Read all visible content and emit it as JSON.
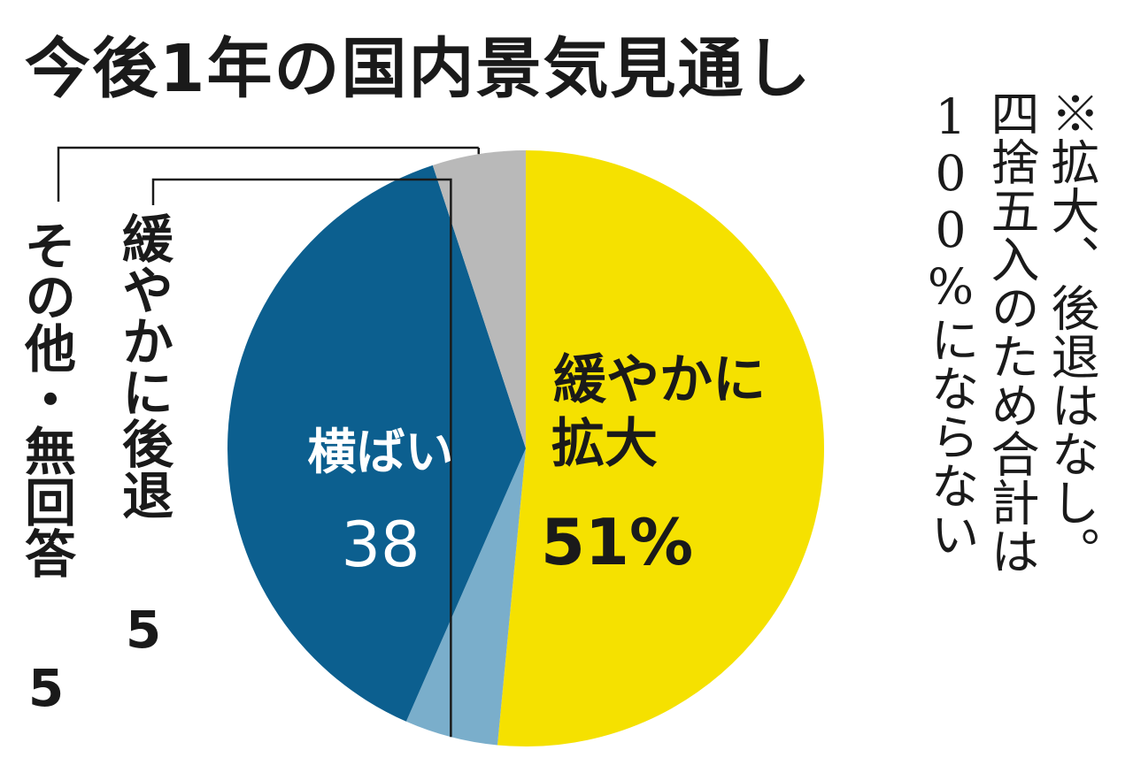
{
  "chart_data": {
    "type": "pie",
    "title": "今後1年の国内景気見通し",
    "slices": [
      {
        "label_lines": [
          "緩やかに",
          "拡大"
        ],
        "value": 51,
        "display": "51%",
        "color": "#f5e100",
        "label_color": "#1a1a1a"
      },
      {
        "label_lines": [
          "緩やかに後退"
        ],
        "value": 5,
        "display": "5",
        "color": "#7aaecb",
        "label_color": "#1a1a1a"
      },
      {
        "label_lines": [
          "横ばい"
        ],
        "value": 38,
        "display": "38",
        "color": "#0c5f8f",
        "label_color": "#ffffff"
      },
      {
        "label_lines": [
          "その他・無回答"
        ],
        "value": 5,
        "display": "5",
        "color": "#b9b9b9",
        "label_color": "#1a1a1a"
      }
    ],
    "note": [
      "※拡大、後退はなし。",
      "四捨五入のため合計は",
      "100%にならない"
    ],
    "legend": "none"
  }
}
